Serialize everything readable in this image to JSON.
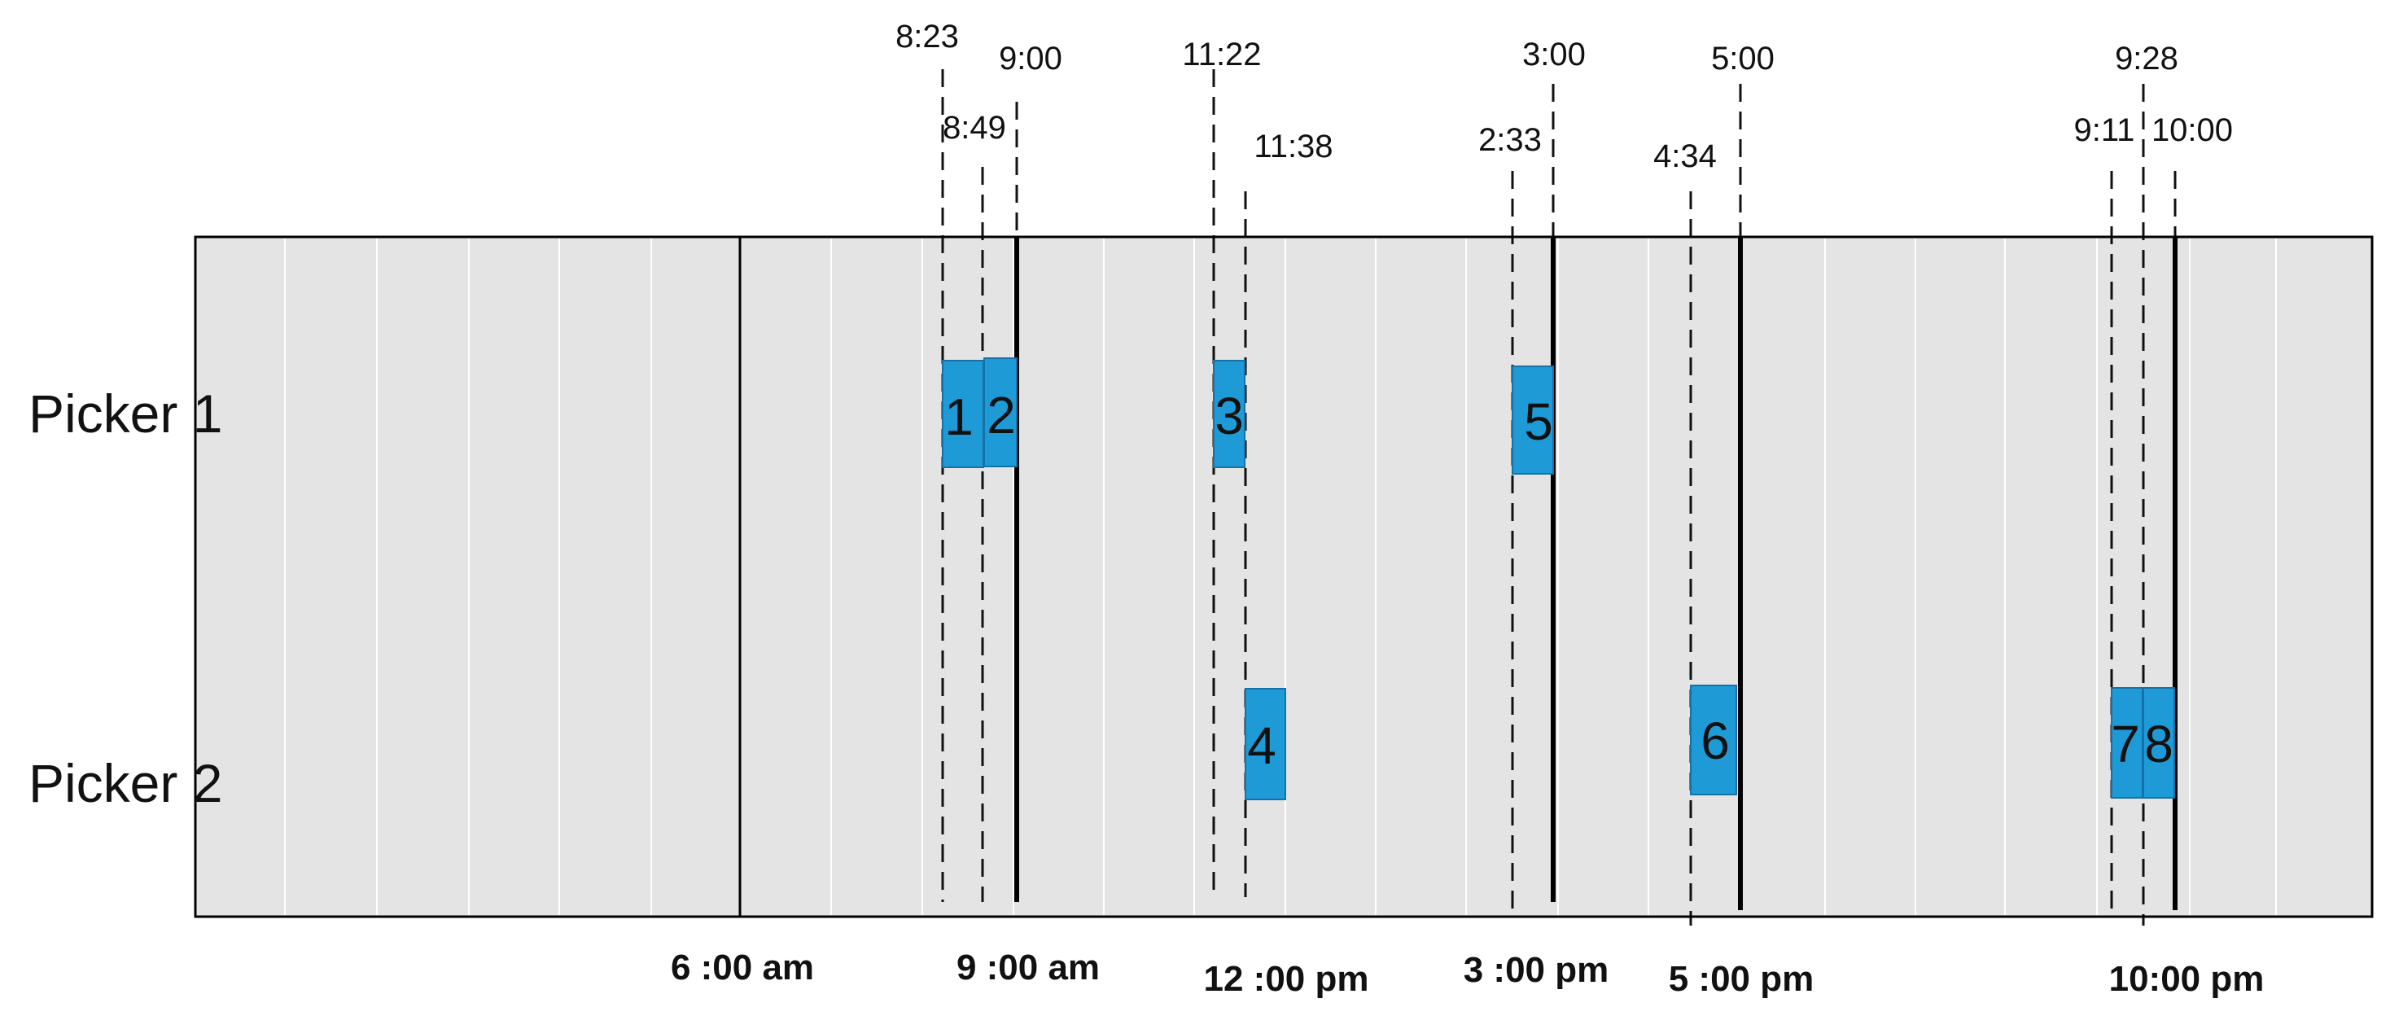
{
  "rows": [
    {
      "label": "Picker 1"
    },
    {
      "label": "Picker 2"
    }
  ],
  "colors": {
    "background": "#e4e4e4",
    "gridline": "#ffffff",
    "border": "#000000",
    "box_fill": "#1e9bd7",
    "box_stroke": "#1672a6"
  },
  "markers": [
    {
      "label": "8:23",
      "time": "8:23"
    },
    {
      "label": "8:49",
      "time": "8:49"
    },
    {
      "label": "9:00",
      "time": "9:00"
    },
    {
      "label": "11:22",
      "time": "11:22"
    },
    {
      "label": "11:38",
      "time": "11:38"
    },
    {
      "label": "2:33",
      "time": "2:33"
    },
    {
      "label": "3:00",
      "time": "3:00"
    },
    {
      "label": "4:34",
      "time": "4:34"
    },
    {
      "label": "5:00",
      "time": "5:00"
    },
    {
      "label": "9:11",
      "time": "9:11"
    },
    {
      "label": "9:28",
      "time": "9:28"
    },
    {
      "label": "10:00",
      "time": "10:00"
    }
  ],
  "axis_labels": [
    {
      "label": "6 :00 am"
    },
    {
      "label": "9 :00 am"
    },
    {
      "label": "12 :00 pm"
    },
    {
      "label": "3 :00 pm"
    },
    {
      "label": "5 :00 pm"
    },
    {
      "label": "10:00 pm"
    }
  ],
  "tasks": [
    {
      "label": "1",
      "picker": "Picker 1",
      "start": "8:23",
      "end": "8:49"
    },
    {
      "label": "2",
      "picker": "Picker 1",
      "start": "8:49",
      "end": "9:00"
    },
    {
      "label": "3",
      "picker": "Picker 1",
      "start": "11:22",
      "end": "11:38"
    },
    {
      "label": "4",
      "picker": "Picker 2",
      "start": "11:38",
      "end": "12:00"
    },
    {
      "label": "5",
      "picker": "Picker 1",
      "start": "2:33",
      "end": "3:00"
    },
    {
      "label": "6",
      "picker": "Picker 2",
      "start": "4:34",
      "end": "5:00"
    },
    {
      "label": "7",
      "picker": "Picker 2",
      "start": "9:11",
      "end": "9:28"
    },
    {
      "label": "8",
      "picker": "Picker 2",
      "start": "9:28",
      "end": "10:00"
    }
  ]
}
